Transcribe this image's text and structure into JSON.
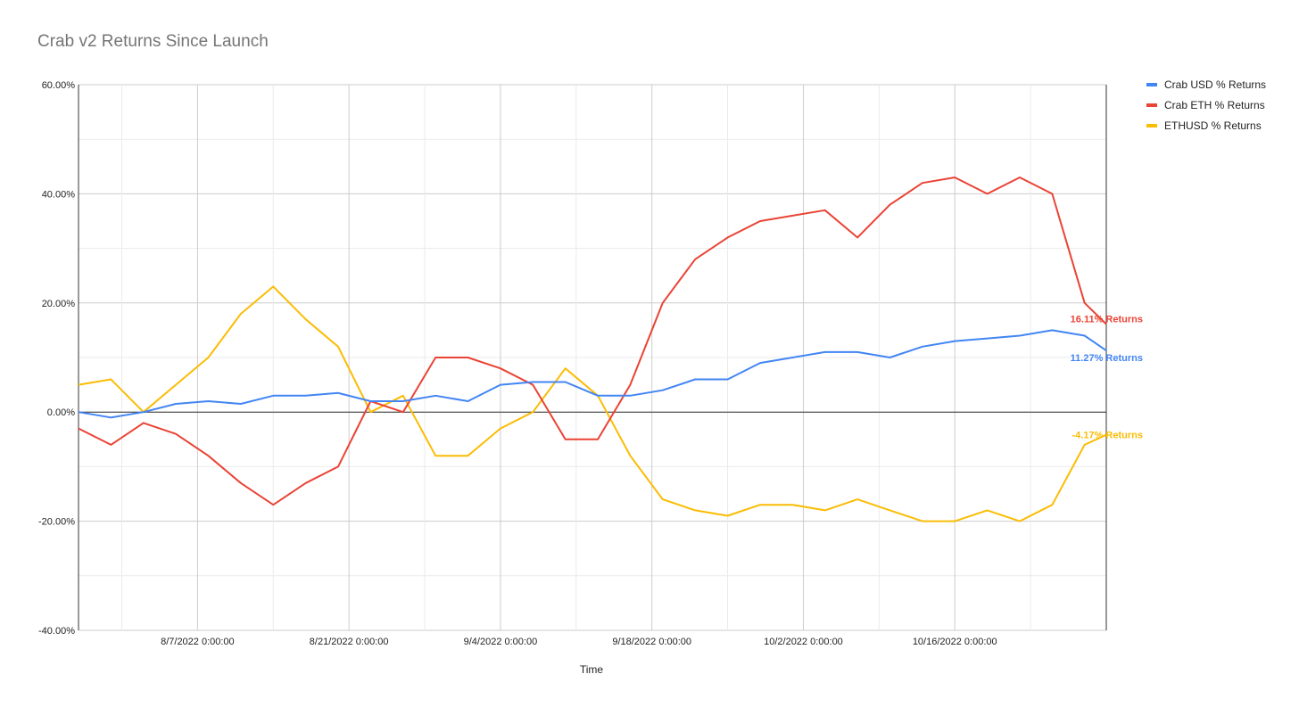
{
  "chart_data": {
    "type": "line",
    "title": "Crab v2 Returns Since Launch",
    "xlabel": "Time",
    "ylabel": "",
    "ylim": [
      -40,
      60
    ],
    "y_ticks": [
      "60.00%",
      "40.00%",
      "20.00%",
      "0.00%",
      "-20.00%",
      "-40.00%"
    ],
    "x_ticks": [
      "8/7/2022 0:00:00",
      "8/21/2022 0:00:00",
      "9/4/2022 0:00:00",
      "9/18/2022 0:00:00",
      "10/2/2022 0:00:00",
      "10/16/2022 0:00:00"
    ],
    "x_start": "2022-07-27",
    "x_end": "2022-10-30",
    "legend_position": "top-right",
    "grid": true,
    "series": [
      {
        "name": "Crab USD % Returns",
        "color": "#4285f4",
        "end_label": "11.27% Returns",
        "x": [
          "2022-07-27",
          "2022-07-30",
          "2022-08-02",
          "2022-08-05",
          "2022-08-08",
          "2022-08-11",
          "2022-08-14",
          "2022-08-17",
          "2022-08-20",
          "2022-08-23",
          "2022-08-26",
          "2022-08-29",
          "2022-09-01",
          "2022-09-04",
          "2022-09-07",
          "2022-09-10",
          "2022-09-13",
          "2022-09-16",
          "2022-09-19",
          "2022-09-22",
          "2022-09-25",
          "2022-09-28",
          "2022-10-01",
          "2022-10-04",
          "2022-10-07",
          "2022-10-10",
          "2022-10-13",
          "2022-10-16",
          "2022-10-19",
          "2022-10-22",
          "2022-10-25",
          "2022-10-28",
          "2022-10-30"
        ],
        "y": [
          0,
          -1,
          0,
          1.5,
          2,
          1.5,
          3,
          3,
          3.5,
          2,
          2,
          3,
          2,
          5,
          5.5,
          5.5,
          3,
          3,
          4,
          6,
          6,
          9,
          10,
          11,
          11,
          10,
          12,
          13,
          13.5,
          14,
          15,
          14,
          11.27
        ]
      },
      {
        "name": "Crab ETH % Returns",
        "color": "#ea4335",
        "end_label": "16.11% Returns",
        "x": [
          "2022-07-27",
          "2022-07-30",
          "2022-08-02",
          "2022-08-05",
          "2022-08-08",
          "2022-08-11",
          "2022-08-14",
          "2022-08-17",
          "2022-08-20",
          "2022-08-23",
          "2022-08-26",
          "2022-08-29",
          "2022-09-01",
          "2022-09-04",
          "2022-09-07",
          "2022-09-10",
          "2022-09-13",
          "2022-09-16",
          "2022-09-19",
          "2022-09-22",
          "2022-09-25",
          "2022-09-28",
          "2022-10-01",
          "2022-10-04",
          "2022-10-07",
          "2022-10-10",
          "2022-10-13",
          "2022-10-16",
          "2022-10-19",
          "2022-10-22",
          "2022-10-25",
          "2022-10-28",
          "2022-10-30"
        ],
        "y": [
          -3,
          -6,
          -2,
          -4,
          -8,
          -13,
          -17,
          -13,
          -10,
          2,
          0,
          10,
          10,
          8,
          5,
          -5,
          -5,
          5,
          20,
          28,
          32,
          35,
          36,
          37,
          32,
          38,
          42,
          43,
          40,
          43,
          40,
          20,
          16.11
        ]
      },
      {
        "name": "ETHUSD % Returns",
        "color": "#fbbc04",
        "end_label": "-4.17% Returns",
        "x": [
          "2022-07-27",
          "2022-07-30",
          "2022-08-02",
          "2022-08-05",
          "2022-08-08",
          "2022-08-11",
          "2022-08-14",
          "2022-08-17",
          "2022-08-20",
          "2022-08-23",
          "2022-08-26",
          "2022-08-29",
          "2022-09-01",
          "2022-09-04",
          "2022-09-07",
          "2022-09-10",
          "2022-09-13",
          "2022-09-16",
          "2022-09-19",
          "2022-09-22",
          "2022-09-25",
          "2022-09-28",
          "2022-10-01",
          "2022-10-04",
          "2022-10-07",
          "2022-10-10",
          "2022-10-13",
          "2022-10-16",
          "2022-10-19",
          "2022-10-22",
          "2022-10-25",
          "2022-10-28",
          "2022-10-30"
        ],
        "y": [
          5,
          6,
          0,
          5,
          10,
          18,
          23,
          17,
          12,
          0,
          3,
          -8,
          -8,
          -3,
          0,
          8,
          3,
          -8,
          -16,
          -18,
          -19,
          -17,
          -17,
          -18,
          -16,
          -18,
          -20,
          -20,
          -18,
          -20,
          -17,
          -6,
          -4.17
        ]
      }
    ]
  }
}
